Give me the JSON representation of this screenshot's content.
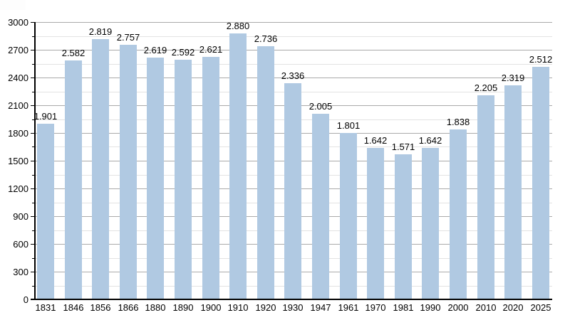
{
  "page": {
    "background_color": "#ffffff",
    "description_labels": {}
  },
  "chart_data": {
    "type": "bar",
    "title": "",
    "xlabel": "",
    "ylabel": "",
    "categories": [
      "1831",
      "1846",
      "1856",
      "1866",
      "1880",
      "1890",
      "1900",
      "1910",
      "1920",
      "1930",
      "1947",
      "1961",
      "1970",
      "1981",
      "1990",
      "2000",
      "2010",
      "2020",
      "2025"
    ],
    "values": [
      1901,
      2582,
      2819,
      2757,
      2619,
      2592,
      2621,
      2880,
      2736,
      2336,
      2005,
      1801,
      1642,
      1571,
      1642,
      1838,
      2205,
      2319,
      2512
    ],
    "value_labels": [
      "1.901",
      "2.582",
      "2.819",
      "2.757",
      "2.619",
      "2.592",
      "2.621",
      "2.880",
      "2.736",
      "2.336",
      "2.005",
      "1.801",
      "1.642",
      "1.571",
      "1.642",
      "1.838",
      "2.205",
      "2.319",
      "2.512"
    ],
    "ylim": [
      0,
      3000
    ],
    "y_major_step": 300,
    "y_minor_step": 150,
    "y_tick_labels": [
      "0",
      "300",
      "600",
      "900",
      "1200",
      "1500",
      "1800",
      "2100",
      "2400",
      "2700",
      "3000"
    ],
    "grid": true,
    "legend_position": "none",
    "bar_color": "#b0c9e2",
    "grid_major_color": "#aaaaaa",
    "grid_minor_color": "#e3e3e3",
    "axis_color": "#000000",
    "text_color": "#000000"
  }
}
